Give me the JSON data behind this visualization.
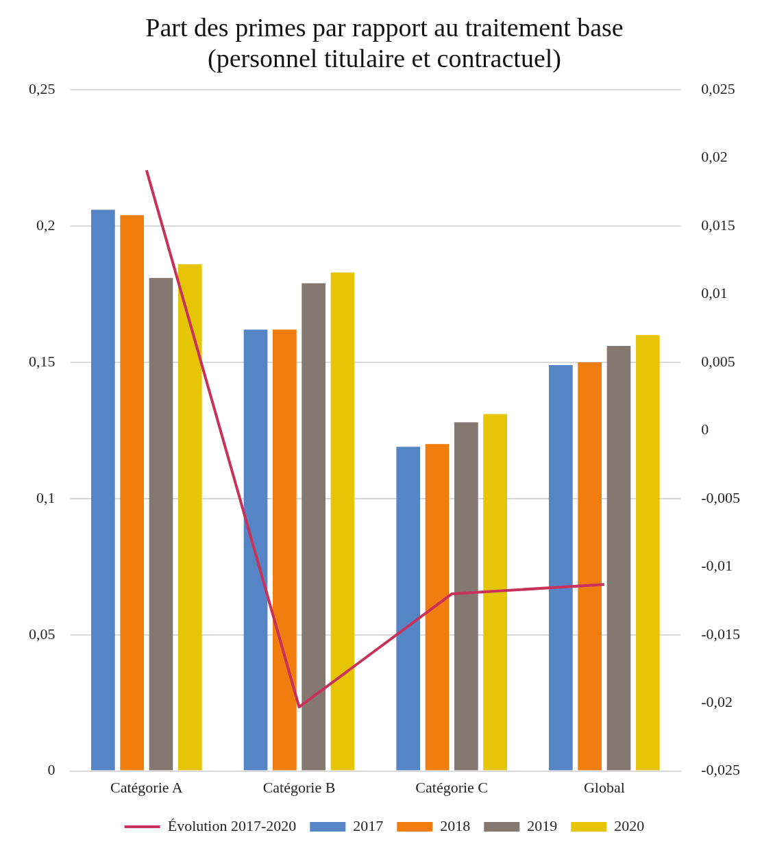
{
  "chart_data": {
    "type": "bar",
    "title": "Part des primes par rapport au traitement base\n(personnel titulaire et contractuel)",
    "categories": [
      "Catégorie A",
      "Catégorie B",
      "Catégorie C",
      "Global"
    ],
    "series": [
      {
        "name": "2017",
        "color": "#5585c5",
        "values": [
          0.206,
          0.162,
          0.119,
          0.149
        ]
      },
      {
        "name": "2018",
        "color": "#f07d0d",
        "values": [
          0.204,
          0.162,
          0.12,
          0.15
        ]
      },
      {
        "name": "2019",
        "color": "#857870",
        "values": [
          0.181,
          0.179,
          0.128,
          0.156
        ]
      },
      {
        "name": "2020",
        "color": "#e6c506",
        "values": [
          0.186,
          0.183,
          0.131,
          0.16
        ]
      },
      {
        "name": "Évolution 2017-2020",
        "type": "line",
        "axis": "y2",
        "color": "#c8325a",
        "values": [
          0.0191,
          -0.0203,
          -0.012,
          -0.0113
        ]
      }
    ],
    "ylim": [
      0,
      0.25
    ],
    "yticks": [
      0,
      {
        "value": 0.05,
        "label": "0,05"
      },
      {
        "value": 0.1,
        "label": "0,1"
      },
      {
        "value": 0.15,
        "label": "0,15"
      },
      {
        "value": 0.2,
        "label": "0,2"
      },
      {
        "value": 0.25,
        "label": "0,25"
      }
    ],
    "y2lim": [
      -0.025,
      0.025
    ],
    "y2ticks": [
      {
        "value": -0.025,
        "label": "-0,025"
      },
      {
        "value": -0.02,
        "label": "-0,02"
      },
      {
        "value": -0.015,
        "label": "-0,015"
      },
      {
        "value": -0.01,
        "label": "-0,01"
      },
      {
        "value": -0.005,
        "label": "-0,005"
      },
      0,
      {
        "value": 0.005,
        "label": "0,005"
      },
      {
        "value": 0.01,
        "label": "0,01"
      },
      {
        "value": 0.015,
        "label": "0,015"
      },
      {
        "value": 0.02,
        "label": "0,02"
      },
      {
        "value": 0.025,
        "label": "0,025"
      }
    ],
    "grid": "y",
    "legend": "bottom",
    "marker": "none",
    "line_style": "solid"
  }
}
